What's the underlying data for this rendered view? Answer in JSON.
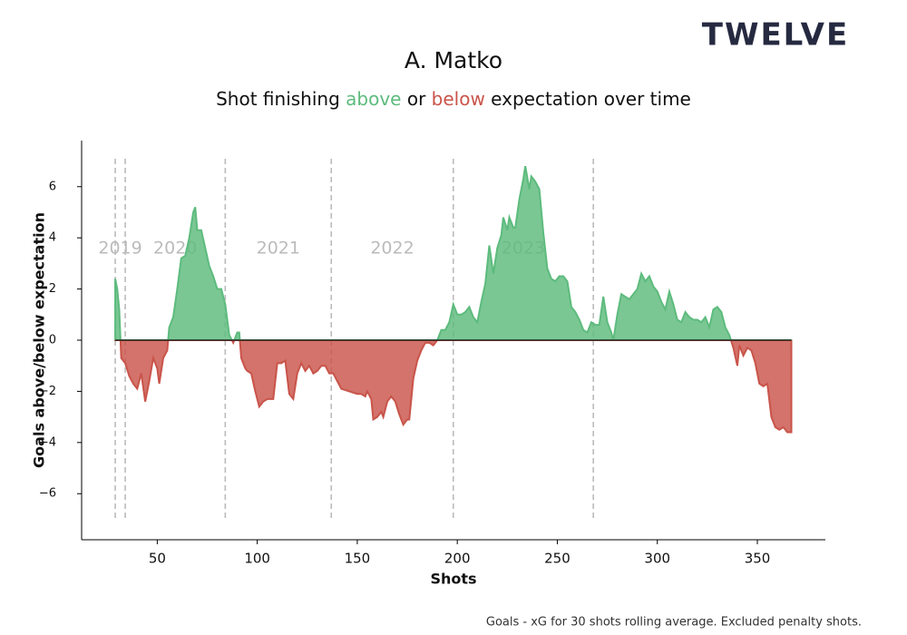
{
  "logo": "TWELVE",
  "footnote": "Goals - xG for 30 shots rolling average. Excluded penalty shots.",
  "chart_data": {
    "type": "area",
    "title": "A. Matko",
    "subtitle": [
      "Shot finishing",
      "above",
      "or",
      "below",
      "expectation over time"
    ],
    "xlabel": "Shots",
    "ylabel": "Goals above/below expectation",
    "color_above": "#5dbb7d",
    "color_below": "#c9544a",
    "season_starts": [
      29,
      34,
      84,
      137,
      198,
      268
    ],
    "season_labels": [
      "2019",
      "2020",
      "2021",
      "2022",
      "2023"
    ],
    "x": [
      29,
      30,
      31,
      32,
      34,
      36,
      38,
      40,
      42,
      44,
      46,
      48,
      50,
      51,
      53,
      55,
      56,
      58,
      60,
      62,
      64,
      66,
      68,
      69,
      70,
      72,
      74,
      76,
      78,
      80,
      82,
      84,
      86,
      88,
      90,
      91,
      92,
      94,
      95,
      97,
      99,
      101,
      103,
      105,
      108,
      110,
      112,
      114,
      116,
      118,
      120,
      122,
      124,
      126,
      128,
      130,
      132,
      134,
      136,
      138,
      140,
      142,
      146,
      150,
      152,
      154,
      155,
      157,
      158,
      160,
      162,
      163,
      165,
      167,
      169,
      171,
      173,
      175,
      176,
      178,
      180,
      182,
      184,
      186,
      188,
      190,
      192,
      194,
      196,
      198,
      200,
      202,
      204,
      206,
      208,
      210,
      212,
      214,
      216,
      218,
      220,
      222,
      223,
      225,
      226,
      228,
      229,
      231,
      233,
      234,
      236,
      237,
      239,
      241,
      243,
      245,
      247,
      249,
      251,
      253,
      255,
      257,
      259,
      261,
      263,
      265,
      267,
      269,
      271,
      273,
      275,
      277,
      278,
      280,
      282,
      284,
      286,
      288,
      290,
      292,
      294,
      296,
      298,
      300,
      302,
      304,
      306,
      308,
      310,
      312,
      314,
      316,
      318,
      320,
      322,
      324,
      326,
      328,
      330,
      332,
      334,
      336,
      338,
      340,
      341,
      343,
      345,
      347,
      349,
      351,
      353,
      355,
      357,
      359,
      361,
      363,
      365,
      367
    ],
    "values": [
      2.4,
      2.0,
      1.2,
      -0.7,
      -0.9,
      -1.4,
      -1.7,
      -1.9,
      -1.3,
      -2.4,
      -1.6,
      -0.7,
      -1.1,
      -1.7,
      -0.7,
      -0.4,
      0.5,
      0.9,
      2.0,
      3.2,
      3.3,
      4.0,
      5.0,
      5.2,
      4.3,
      4.3,
      3.6,
      2.9,
      2.5,
      2.0,
      2.0,
      1.4,
      0.2,
      -0.1,
      0.3,
      0.3,
      -0.7,
      -1.1,
      -1.2,
      -1.3,
      -2.0,
      -2.6,
      -2.4,
      -2.3,
      -2.3,
      -0.9,
      -0.9,
      -0.8,
      -2.1,
      -2.3,
      -1.3,
      -0.9,
      -1.2,
      -1.0,
      -1.3,
      -1.2,
      -1.0,
      -1.0,
      -1.3,
      -1.3,
      -1.6,
      -1.9,
      -2.0,
      -2.1,
      -2.1,
      -2.2,
      -2.0,
      -2.3,
      -3.1,
      -3.0,
      -2.8,
      -3.0,
      -2.4,
      -2.2,
      -2.4,
      -2.9,
      -3.3,
      -3.1,
      -3.1,
      -1.5,
      -0.8,
      -0.4,
      -0.1,
      -0.1,
      -0.2,
      0.0,
      0.4,
      0.4,
      0.7,
      1.4,
      1.0,
      1.0,
      1.1,
      1.3,
      0.9,
      0.7,
      1.5,
      2.2,
      3.7,
      2.6,
      3.6,
      4.1,
      4.8,
      4.3,
      4.8,
      4.4,
      4.4,
      5.5,
      6.3,
      6.8,
      5.9,
      6.4,
      6.2,
      5.9,
      4.2,
      2.8,
      2.4,
      2.3,
      2.5,
      2.5,
      2.3,
      1.3,
      1.1,
      0.8,
      0.4,
      0.3,
      0.7,
      0.6,
      0.6,
      1.7,
      0.7,
      0.3,
      0.0,
      1.0,
      1.8,
      1.7,
      1.6,
      1.8,
      2.0,
      2.6,
      2.3,
      2.5,
      2.1,
      1.9,
      1.5,
      1.2,
      1.9,
      1.4,
      0.8,
      0.7,
      1.1,
      0.9,
      0.8,
      0.8,
      0.7,
      0.9,
      0.5,
      1.2,
      1.3,
      1.1,
      0.5,
      0.2,
      -0.3,
      -1.0,
      -0.2,
      -0.6,
      -0.3,
      -0.4,
      -0.9,
      -1.7,
      -1.8,
      -1.7,
      -3.0,
      -3.4,
      -3.5,
      -3.4,
      -3.6,
      -3.6
    ],
    "xlim": [
      12.2,
      384
    ],
    "ylim": [
      -7.8,
      7.8
    ],
    "xticks": [
      50,
      100,
      150,
      200,
      250,
      300,
      350
    ],
    "yticks": [
      {
        "value": -6,
        "label": "−6"
      },
      {
        "value": -4,
        "label": "−4"
      },
      {
        "value": -2,
        "label": "−2"
      },
      0,
      2,
      4,
      6
    ]
  }
}
